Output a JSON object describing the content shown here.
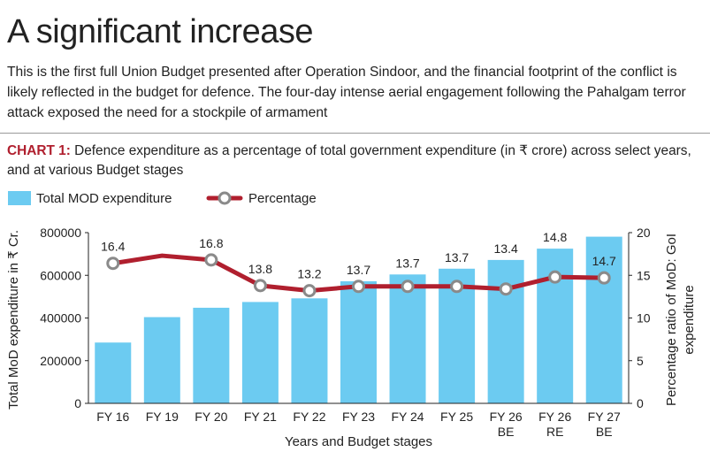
{
  "title": "A significant increase",
  "intro": "This is the first full Union Budget presented after Operation Sindoor, and the financial footprint of the conflict is likely reflected in the budget for defence. The four-day intense aerial engagement following the Pahalgam terror attack exposed the need for a stockpile of armament",
  "chart_heading": {
    "label": "CHART 1:",
    "text": "Defence expenditure as a percentage of total government expenditure (in ₹ crore) across select years, and at various Budget stages"
  },
  "colors": {
    "bar": "#6ccbf1",
    "line": "#b01f2e",
    "marker": "#ffffff",
    "marker_ring": "#8a8a8a",
    "accent": "#b01f2e"
  },
  "chart_data": {
    "type": "bar+line",
    "title": "Defence expenditure as a percentage of total government expenditure (in ₹ crore) across select years, and at various Budget stages",
    "categories": [
      [
        "FY 16"
      ],
      [
        "FY 19"
      ],
      [
        "FY 20"
      ],
      [
        "FY 21"
      ],
      [
        "FY 22"
      ],
      [
        "FY 23"
      ],
      [
        "FY 24"
      ],
      [
        "FY 25"
      ],
      [
        "FY 26",
        "BE"
      ],
      [
        "FY 26",
        "RE"
      ],
      [
        "FY 27",
        "BE"
      ]
    ],
    "legend": [
      "Total MOD expenditure",
      "Percentage"
    ],
    "series": [
      {
        "name": "Total MOD expenditure",
        "type": "bar",
        "axis": "left",
        "values": [
          285000,
          404000,
          448000,
          475000,
          492000,
          572000,
          604000,
          631000,
          672000,
          725000,
          781000
        ]
      },
      {
        "name": "Percentage",
        "type": "line",
        "axis": "right",
        "values": [
          16.4,
          17.3,
          16.8,
          13.8,
          13.2,
          13.7,
          13.7,
          13.7,
          13.4,
          14.8,
          14.7
        ],
        "labels": [
          "16.4",
          null,
          "16.8",
          "13.8",
          "13.2",
          "13.7",
          "13.7",
          "13.7",
          "13.4",
          "14.8",
          "14.7"
        ]
      }
    ],
    "xlabel": "Years and Budget stages",
    "ylabel": "Total MoD expenditure in ₹ Cr.",
    "y2label": [
      "Percentage ratio of MoD: GoI",
      "expenditure"
    ],
    "ylim": [
      0,
      800000
    ],
    "yticks": [
      "0",
      "200000",
      "400000",
      "600000",
      "800000"
    ],
    "y2lim": [
      0,
      20
    ],
    "y2ticks": [
      "0",
      "5",
      "10",
      "15",
      "20"
    ],
    "legend_position": "top-left",
    "grid": false
  }
}
